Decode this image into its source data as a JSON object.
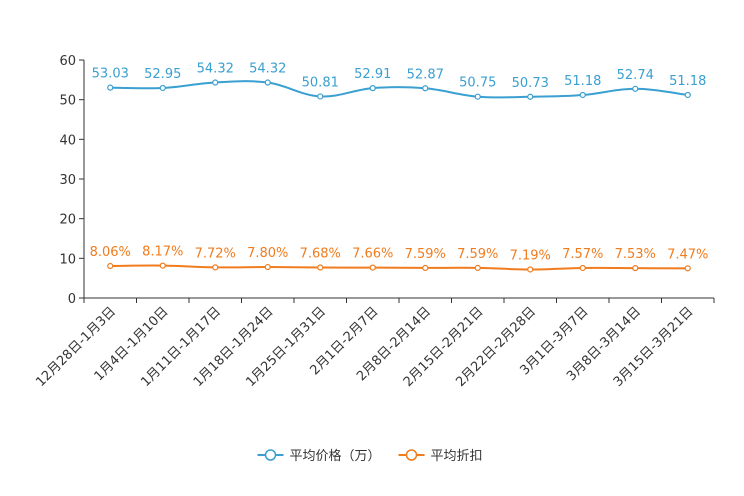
{
  "chart_data": {
    "type": "line",
    "categories": [
      "12月28日-1月3日",
      "1月4日-1月10日",
      "1月11日-1月17日",
      "1月18日-1月24日",
      "1月25日-1月31日",
      "2月1日-2月7日",
      "2月8日-2月14日",
      "2月15日-2月21日",
      "2月22日-2月28日",
      "3月1日-3月7日",
      "3月8日-3月14日",
      "3月15日-3月21日"
    ],
    "ylim": [
      0,
      60
    ],
    "yticks": [
      0,
      10,
      20,
      30,
      40,
      50,
      60
    ],
    "series": [
      {
        "name": "平均价格（万）",
        "color": "#3a9fd1",
        "values": [
          53.03,
          52.95,
          54.32,
          54.32,
          50.81,
          52.91,
          52.87,
          50.75,
          50.73,
          51.18,
          52.74,
          51.18
        ],
        "labels": [
          "53.03",
          "52.95",
          "54.32",
          "54.32",
          "50.81",
          "52.91",
          "52.87",
          "50.75",
          "50.73",
          "51.18",
          "52.74",
          "51.18"
        ]
      },
      {
        "name": "平均折扣",
        "color": "#f07c1e",
        "values": [
          8.06,
          8.17,
          7.72,
          7.8,
          7.68,
          7.66,
          7.59,
          7.59,
          7.19,
          7.57,
          7.53,
          7.47
        ],
        "labels": [
          "8.06%",
          "8.17%",
          "7.72%",
          "7.80%",
          "7.68%",
          "7.66%",
          "7.59%",
          "7.59%",
          "7.19%",
          "7.57%",
          "7.53%",
          "7.47%"
        ]
      }
    ],
    "legend": "bottom"
  }
}
